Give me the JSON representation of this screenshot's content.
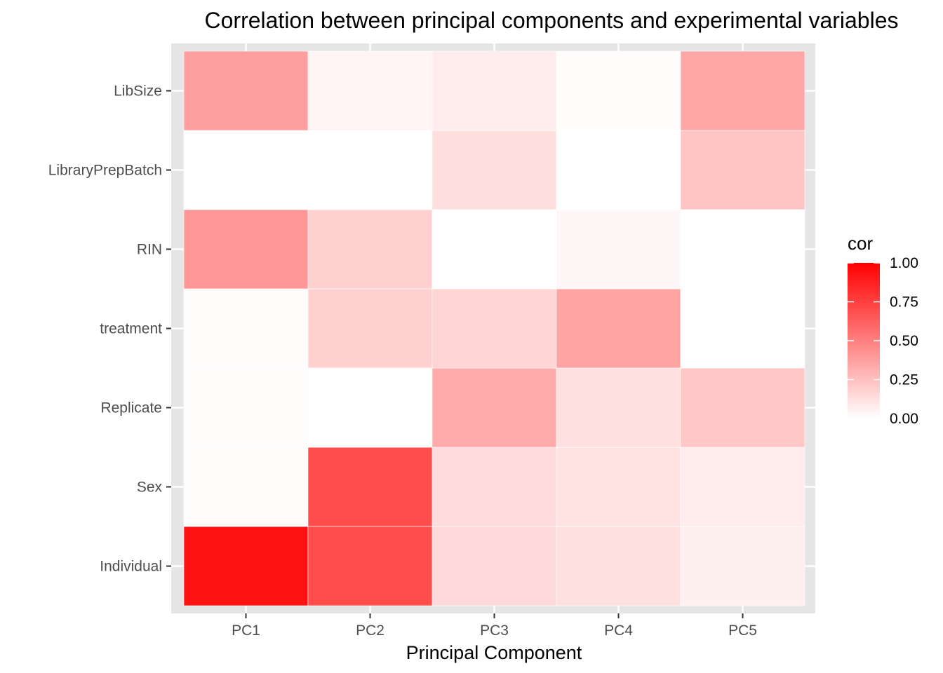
{
  "chart_data": {
    "type": "heatmap",
    "title": "Correlation between principal components and experimental variables",
    "xlabel": "Principal Component",
    "ylabel": "",
    "x_categories": [
      "PC1",
      "PC2",
      "PC3",
      "PC4",
      "PC5"
    ],
    "y_categories": [
      "Individual",
      "Sex",
      "Replicate",
      "treatment",
      "RIN",
      "LibraryPrepBatch",
      "LibSize"
    ],
    "values": [
      [
        0.93,
        0.7,
        0.15,
        0.12,
        0.06
      ],
      [
        0.01,
        0.7,
        0.14,
        0.11,
        0.07
      ],
      [
        0.01,
        0.0,
        0.33,
        0.12,
        0.22
      ],
      [
        0.01,
        0.18,
        0.17,
        0.36,
        0.0
      ],
      [
        0.41,
        0.18,
        0.0,
        0.03,
        0.0
      ],
      [
        0.0,
        0.0,
        0.13,
        0.0,
        0.23
      ],
      [
        0.38,
        0.04,
        0.07,
        0.01,
        0.35
      ]
    ],
    "legend": {
      "title": "cor",
      "ticks": [
        "1.00",
        "0.75",
        "0.50",
        "0.25",
        "0.00"
      ],
      "tick_values": [
        1.0,
        0.75,
        0.5,
        0.25,
        0.0
      ],
      "low_color": "#ffffff",
      "high_color": "#ff0000",
      "placement": "right"
    },
    "scale": [
      0,
      1
    ],
    "grid": true,
    "panel_background": "#e5e5e5"
  }
}
